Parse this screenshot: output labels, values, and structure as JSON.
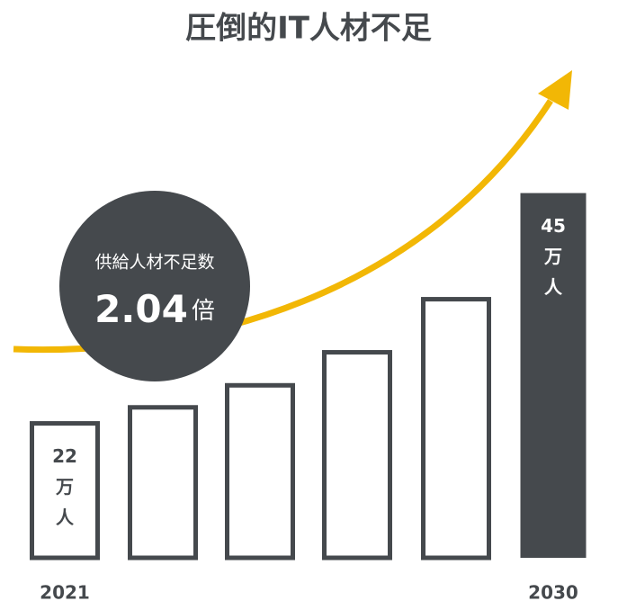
{
  "chart_data": {
    "type": "bar",
    "title": "圧倒的IT人材不足",
    "categories": [
      "2021",
      null,
      null,
      null,
      null,
      "2030"
    ],
    "values": [
      22,
      23.6,
      25.8,
      29.1,
      34.4,
      45
    ],
    "value_labels": [
      "22万人",
      null,
      null,
      null,
      null,
      "45万人"
    ],
    "ylim": [
      8.35,
      50
    ],
    "color": "#45494d",
    "highlight_color": "#45494d",
    "annotation": {
      "label": "供給人材不足数",
      "value": 2.04,
      "unit": "倍"
    },
    "arrow_color": "#f2b705"
  }
}
